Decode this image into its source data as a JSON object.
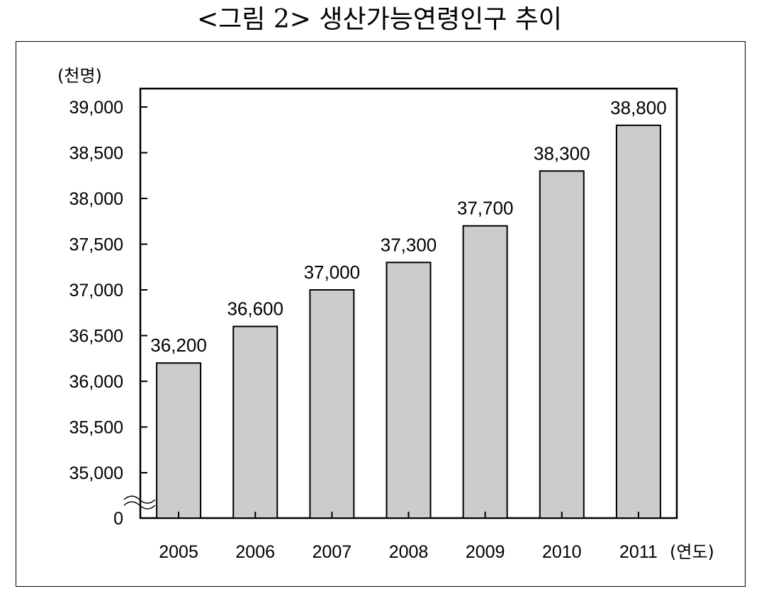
{
  "chart_data": {
    "type": "bar",
    "title": "<그림 2> 생산가능연령인구 추이",
    "ylabel": "(천명)",
    "xlabel": "(연도)",
    "categories": [
      "2005",
      "2006",
      "2007",
      "2008",
      "2009",
      "2010",
      "2011"
    ],
    "values": [
      36200,
      36600,
      37000,
      37300,
      37700,
      38300,
      38800
    ],
    "value_labels": [
      "36,200",
      "36,600",
      "37,000",
      "37,300",
      "37,700",
      "38,300",
      "38,800"
    ],
    "ylim": [
      35000,
      39000
    ],
    "y_axis_break": true,
    "y_ticks": [
      35000,
      35500,
      36000,
      36500,
      37000,
      37500,
      38000,
      38500,
      39000
    ],
    "y_tick_labels": [
      "0",
      "35,000",
      "35,500",
      "36,000",
      "36,500",
      "37,000",
      "37,500",
      "38,000",
      "38,500",
      "39,000"
    ],
    "grid": false,
    "legend": "none",
    "colors": {
      "bar_fill": "#cccccc",
      "bar_stroke": "#000000",
      "frame": "#000000"
    }
  }
}
